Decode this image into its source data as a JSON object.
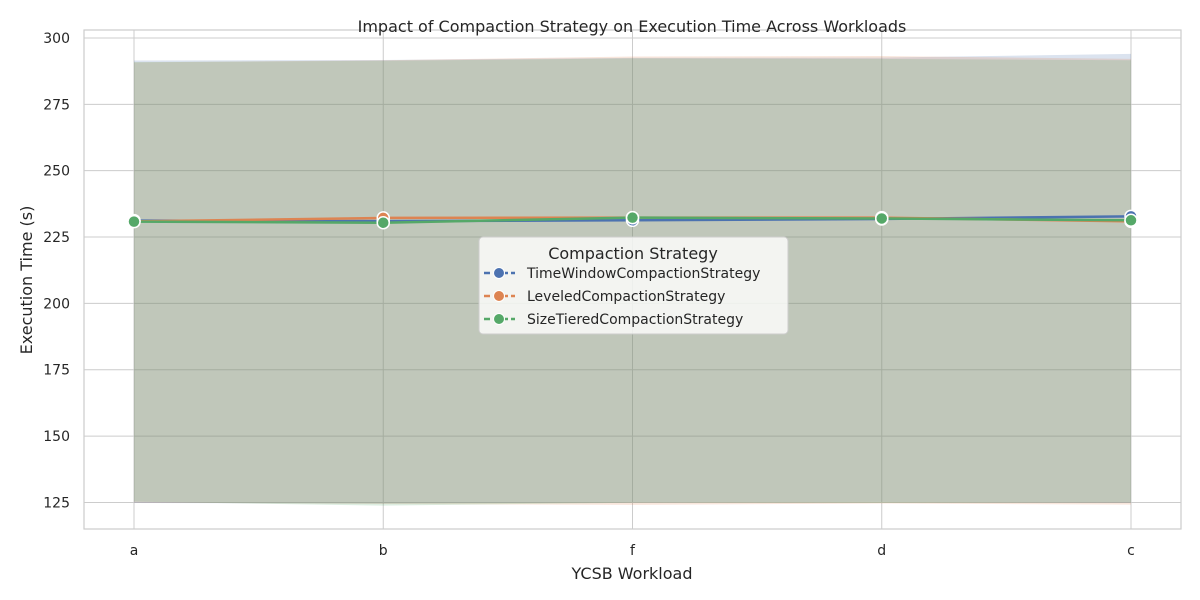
{
  "chart_data": {
    "type": "line",
    "title": "Impact of Compaction Strategy on Execution Time Across Workloads",
    "xlabel": "YCSB Workload",
    "ylabel": "Execution Time (s)",
    "categories": [
      "a",
      "b",
      "f",
      "d",
      "c"
    ],
    "ylim": [
      115,
      303
    ],
    "yticks": [
      125,
      150,
      175,
      200,
      225,
      250,
      275,
      300
    ],
    "grid": true,
    "legend": {
      "title": "Compaction Strategy",
      "placement": "center"
    },
    "series": [
      {
        "name": "TimeWindowCompactionStrategy",
        "color": "#4c72b0",
        "values": [
          231.2,
          231.0,
          231.3,
          231.8,
          232.8
        ],
        "band_upper": [
          291.5,
          291.7,
          292.5,
          292.6,
          294.0
        ],
        "band_lower": [
          124.8,
          124.6,
          125.0,
          125.2,
          124.8
        ]
      },
      {
        "name": "LeveledCompactionStrategy",
        "color": "#dd8452",
        "values": [
          230.9,
          232.2,
          232.3,
          232.3,
          230.9
        ],
        "band_upper": [
          290.8,
          291.6,
          293.0,
          293.2,
          292.1
        ],
        "band_lower": [
          125.0,
          124.4,
          124.1,
          124.6,
          124.2
        ]
      },
      {
        "name": "SizeTieredCompactionStrategy",
        "color": "#55a868",
        "values": [
          230.8,
          230.4,
          232.3,
          232.0,
          231.3
        ],
        "band_upper": [
          290.9,
          291.4,
          292.3,
          292.1,
          291.6
        ],
        "band_lower": [
          125.3,
          123.8,
          124.9,
          124.8,
          125.0
        ]
      }
    ]
  }
}
